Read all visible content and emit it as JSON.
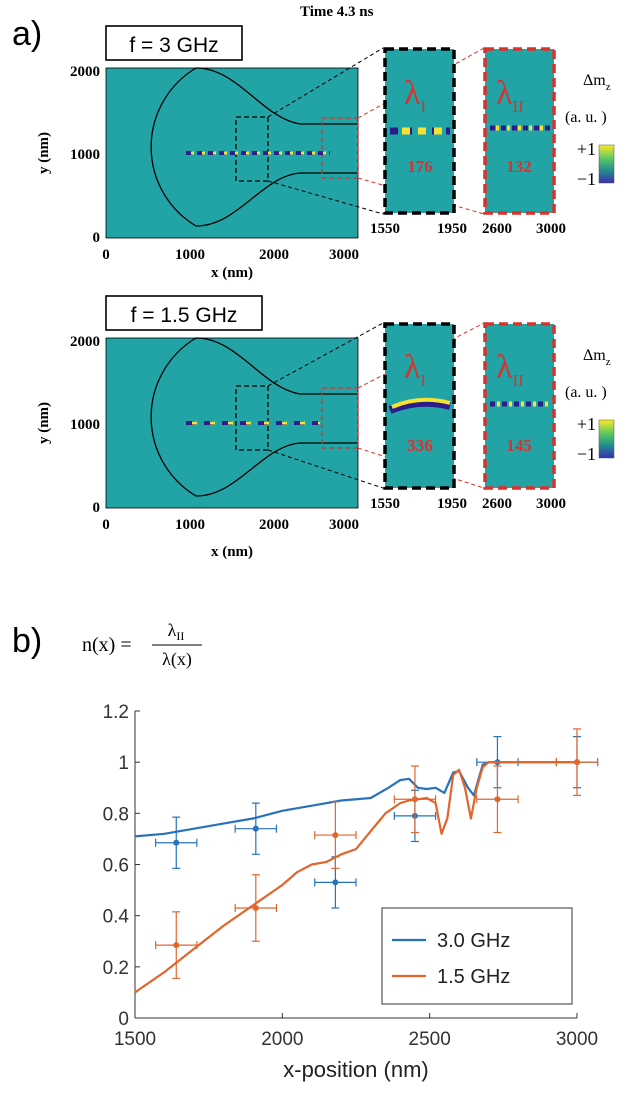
{
  "figure": {
    "panel_a_label": "a)",
    "panel_b_label": "b)",
    "time_label": "Time 4.3 ns"
  },
  "sim_panels": [
    {
      "freq_label": "f = 3 GHz",
      "ylabel": "y (nm)",
      "xlabel": "x (nm)",
      "yticks": [
        "2000",
        "1000",
        "0"
      ],
      "xticks": [
        "0",
        "1000",
        "2000",
        "3000"
      ],
      "zoom1": {
        "symbol": "λ",
        "sub": "I",
        "value": "176",
        "ticks": [
          "1550",
          "1950"
        ]
      },
      "zoom2": {
        "symbol": "λ",
        "sub": "II",
        "value": "132",
        "ticks": [
          "2600",
          "3000"
        ]
      },
      "colorbar": {
        "label": "Δm",
        "label_sub": "z",
        "units": "(a. u. )",
        "max": "+1",
        "min": "−1"
      }
    },
    {
      "freq_label": "f = 1.5 GHz",
      "ylabel": "y (nm)",
      "xlabel": "x (nm)",
      "yticks": [
        "2000",
        "1000",
        "0"
      ],
      "xticks": [
        "0",
        "1000",
        "2000",
        "3000"
      ],
      "zoom1": {
        "symbol": "λ",
        "sub": "I",
        "value": "336",
        "ticks": [
          "1550",
          "1950"
        ]
      },
      "zoom2": {
        "symbol": "λ",
        "sub": "II",
        "value": "145",
        "ticks": [
          "2600",
          "3000"
        ]
      },
      "colorbar": {
        "label": "Δm",
        "label_sub": "z",
        "units": "(a. u. )",
        "max": "+1",
        "min": "−1"
      }
    }
  ],
  "formula": {
    "lhs": "n(x) =",
    "num_symbol": "λ",
    "num_sub": "II",
    "den": "λ(x)"
  },
  "chart_data": {
    "type": "line",
    "title": "",
    "xlabel": "x-position (nm)",
    "ylabel": "",
    "xlim": [
      1500,
      3000
    ],
    "ylim": [
      0,
      1.2
    ],
    "xticks": [
      1500,
      2000,
      2500,
      3000
    ],
    "yticks": [
      0,
      0.2,
      0.4,
      0.6,
      0.8,
      1,
      1.2
    ],
    "ytick_labels": [
      "0",
      "0.2",
      "0.4",
      "0.6",
      "0.8",
      "1",
      "1.2"
    ],
    "legend_position": "bottom-right",
    "series": [
      {
        "name": "3.0 GHz",
        "color": "#2772bd",
        "curve_x": [
          1500,
          1600,
          1700,
          1800,
          1900,
          2000,
          2100,
          2200,
          2300,
          2360,
          2400,
          2430,
          2460,
          2490,
          2520,
          2550,
          2580,
          2600,
          2630,
          2650,
          2680,
          2700,
          2750,
          2800,
          2900,
          3000
        ],
        "curve_y": [
          0.71,
          0.72,
          0.74,
          0.76,
          0.78,
          0.81,
          0.83,
          0.85,
          0.86,
          0.9,
          0.93,
          0.935,
          0.9,
          0.895,
          0.9,
          0.88,
          0.96,
          0.965,
          0.9,
          0.87,
          0.99,
          1.0,
          1.0,
          1.0,
          1.0,
          1.0
        ],
        "points_x": [
          1640,
          1910,
          2180,
          2450,
          2730,
          3000
        ],
        "points_y": [
          0.685,
          0.74,
          0.53,
          0.79,
          1.0,
          1.0
        ],
        "yerr": [
          0.1,
          0.1,
          0.1,
          0.1,
          0.1,
          0.1
        ],
        "xerr": [
          70,
          70,
          70,
          70,
          70,
          70
        ]
      },
      {
        "name": "1.5 GHz",
        "color": "#e2652c",
        "curve_x": [
          1500,
          1600,
          1700,
          1800,
          1900,
          2000,
          2050,
          2100,
          2150,
          2200,
          2250,
          2300,
          2350,
          2400,
          2430,
          2460,
          2490,
          2520,
          2540,
          2560,
          2580,
          2600,
          2620,
          2640,
          2660,
          2680,
          2700,
          2750,
          2800,
          2900,
          3000
        ],
        "curve_y": [
          0.1,
          0.18,
          0.27,
          0.36,
          0.44,
          0.52,
          0.57,
          0.6,
          0.61,
          0.64,
          0.66,
          0.73,
          0.8,
          0.84,
          0.85,
          0.855,
          0.86,
          0.84,
          0.72,
          0.78,
          0.95,
          0.97,
          0.9,
          0.78,
          0.9,
          0.98,
          1.0,
          1.0,
          1.0,
          1.0,
          1.0
        ],
        "points_x": [
          1640,
          1910,
          2180,
          2450,
          2730,
          3000
        ],
        "points_y": [
          0.285,
          0.43,
          0.715,
          0.855,
          0.855,
          1.0
        ],
        "yerr": [
          0.13,
          0.13,
          0.13,
          0.13,
          0.13,
          0.13
        ],
        "xerr": [
          70,
          70,
          70,
          70,
          70,
          70
        ]
      }
    ]
  }
}
